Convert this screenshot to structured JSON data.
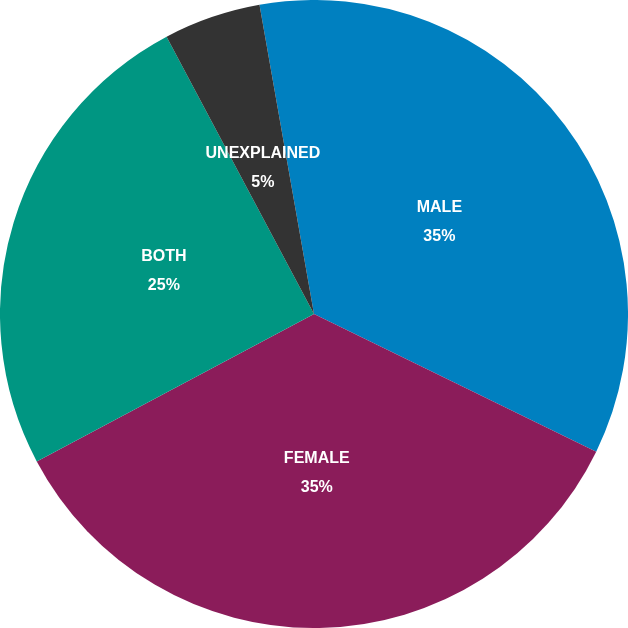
{
  "chart_data": {
    "type": "pie",
    "categories": [
      "MALE",
      "FEMALE",
      "BOTH",
      "UNEXPLAINED"
    ],
    "values": [
      35,
      35,
      25,
      5
    ],
    "value_labels": [
      "35%",
      "35%",
      "25%",
      "5%"
    ],
    "colors": [
      "#0080c0",
      "#8b1c5a",
      "#009682",
      "#333333"
    ],
    "data_labels": true
  }
}
